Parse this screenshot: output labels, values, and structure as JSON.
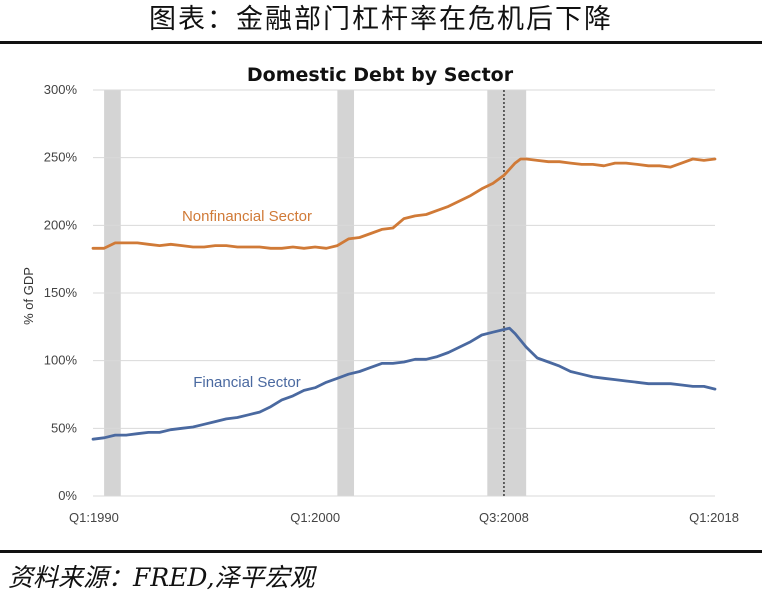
{
  "header": {
    "title": "图表：金融部门杠杆率在危机后下降"
  },
  "footer": {
    "source": "资料来源：FRED,泽平宏观"
  },
  "chart_data": {
    "type": "line",
    "title": "Domestic Debt by Sector",
    "ylabel": "% of GDP",
    "xlabel": "",
    "ylim": [
      0,
      300
    ],
    "yticks": [
      "0%",
      "50%",
      "100%",
      "150%",
      "200%",
      "250%",
      "300%"
    ],
    "xticks": [
      {
        "label": "Q1:1990",
        "x": 1990.0
      },
      {
        "label": "Q1:2000",
        "x": 2000.0
      },
      {
        "label": "Q3:2008",
        "x": 2008.5
      },
      {
        "label": "Q1:2018",
        "x": 2018.0
      }
    ],
    "xlim": [
      1990.0,
      2018.0
    ],
    "grid": true,
    "recessions": [
      [
        1990.5,
        1991.25
      ],
      [
        2001.0,
        2001.75
      ],
      [
        2007.75,
        2009.5
      ]
    ],
    "event_line": 2008.5,
    "series": [
      {
        "name": "Nonfinancial Sector",
        "color": "#d07a37",
        "x": [
          1990.0,
          1990.5,
          1991.0,
          1991.5,
          1992.0,
          1992.5,
          1993.0,
          1993.5,
          1994.0,
          1994.5,
          1995.0,
          1995.5,
          1996.0,
          1996.5,
          1997.0,
          1997.5,
          1998.0,
          1998.5,
          1999.0,
          1999.5,
          2000.0,
          2000.5,
          2001.0,
          2001.5,
          2002.0,
          2002.5,
          2003.0,
          2003.5,
          2004.0,
          2004.5,
          2005.0,
          2005.5,
          2006.0,
          2006.5,
          2007.0,
          2007.5,
          2008.0,
          2008.5,
          2009.0,
          2009.25,
          2009.5,
          2010.0,
          2010.5,
          2011.0,
          2011.5,
          2012.0,
          2012.5,
          2013.0,
          2013.5,
          2014.0,
          2014.5,
          2015.0,
          2015.5,
          2016.0,
          2016.5,
          2017.0,
          2017.5,
          2018.0
        ],
        "values": [
          183,
          183,
          187,
          187,
          187,
          186,
          185,
          186,
          185,
          184,
          184,
          185,
          185,
          184,
          184,
          184,
          183,
          183,
          184,
          183,
          184,
          183,
          185,
          190,
          191,
          194,
          197,
          198,
          205,
          207,
          208,
          211,
          214,
          218,
          222,
          227,
          231,
          237,
          246,
          249,
          249,
          248,
          247,
          247,
          246,
          245,
          245,
          244,
          246,
          246,
          245,
          244,
          244,
          243,
          246,
          249,
          248,
          249
        ]
      },
      {
        "name": "Financial Sector",
        "color": "#4a69a0",
        "x": [
          1990.0,
          1990.5,
          1991.0,
          1991.5,
          1992.0,
          1992.5,
          1993.0,
          1993.5,
          1994.0,
          1994.5,
          1995.0,
          1995.5,
          1996.0,
          1996.5,
          1997.0,
          1997.5,
          1998.0,
          1998.5,
          1999.0,
          1999.5,
          2000.0,
          2000.5,
          2001.0,
          2001.5,
          2002.0,
          2002.5,
          2003.0,
          2003.5,
          2004.0,
          2004.5,
          2005.0,
          2005.5,
          2006.0,
          2006.5,
          2007.0,
          2007.5,
          2008.0,
          2008.5,
          2008.75,
          2009.0,
          2009.5,
          2010.0,
          2010.5,
          2011.0,
          2011.5,
          2012.0,
          2012.5,
          2013.0,
          2013.5,
          2014.0,
          2014.5,
          2015.0,
          2015.5,
          2016.0,
          2016.5,
          2017.0,
          2017.5,
          2018.0
        ],
        "values": [
          42,
          43,
          45,
          45,
          46,
          47,
          47,
          49,
          50,
          51,
          53,
          55,
          57,
          58,
          60,
          62,
          66,
          71,
          74,
          78,
          80,
          84,
          87,
          90,
          92,
          95,
          98,
          98,
          99,
          101,
          101,
          103,
          106,
          110,
          114,
          119,
          121,
          123,
          124,
          120,
          110,
          102,
          99,
          96,
          92,
          90,
          88,
          87,
          86,
          85,
          84,
          83,
          83,
          83,
          82,
          81,
          81,
          79
        ]
      }
    ],
    "annotations": [
      {
        "text": "Nonfinancial Sector",
        "color": "#d07a37"
      },
      {
        "text": "Financial Sector",
        "color": "#4a69a0"
      }
    ]
  }
}
